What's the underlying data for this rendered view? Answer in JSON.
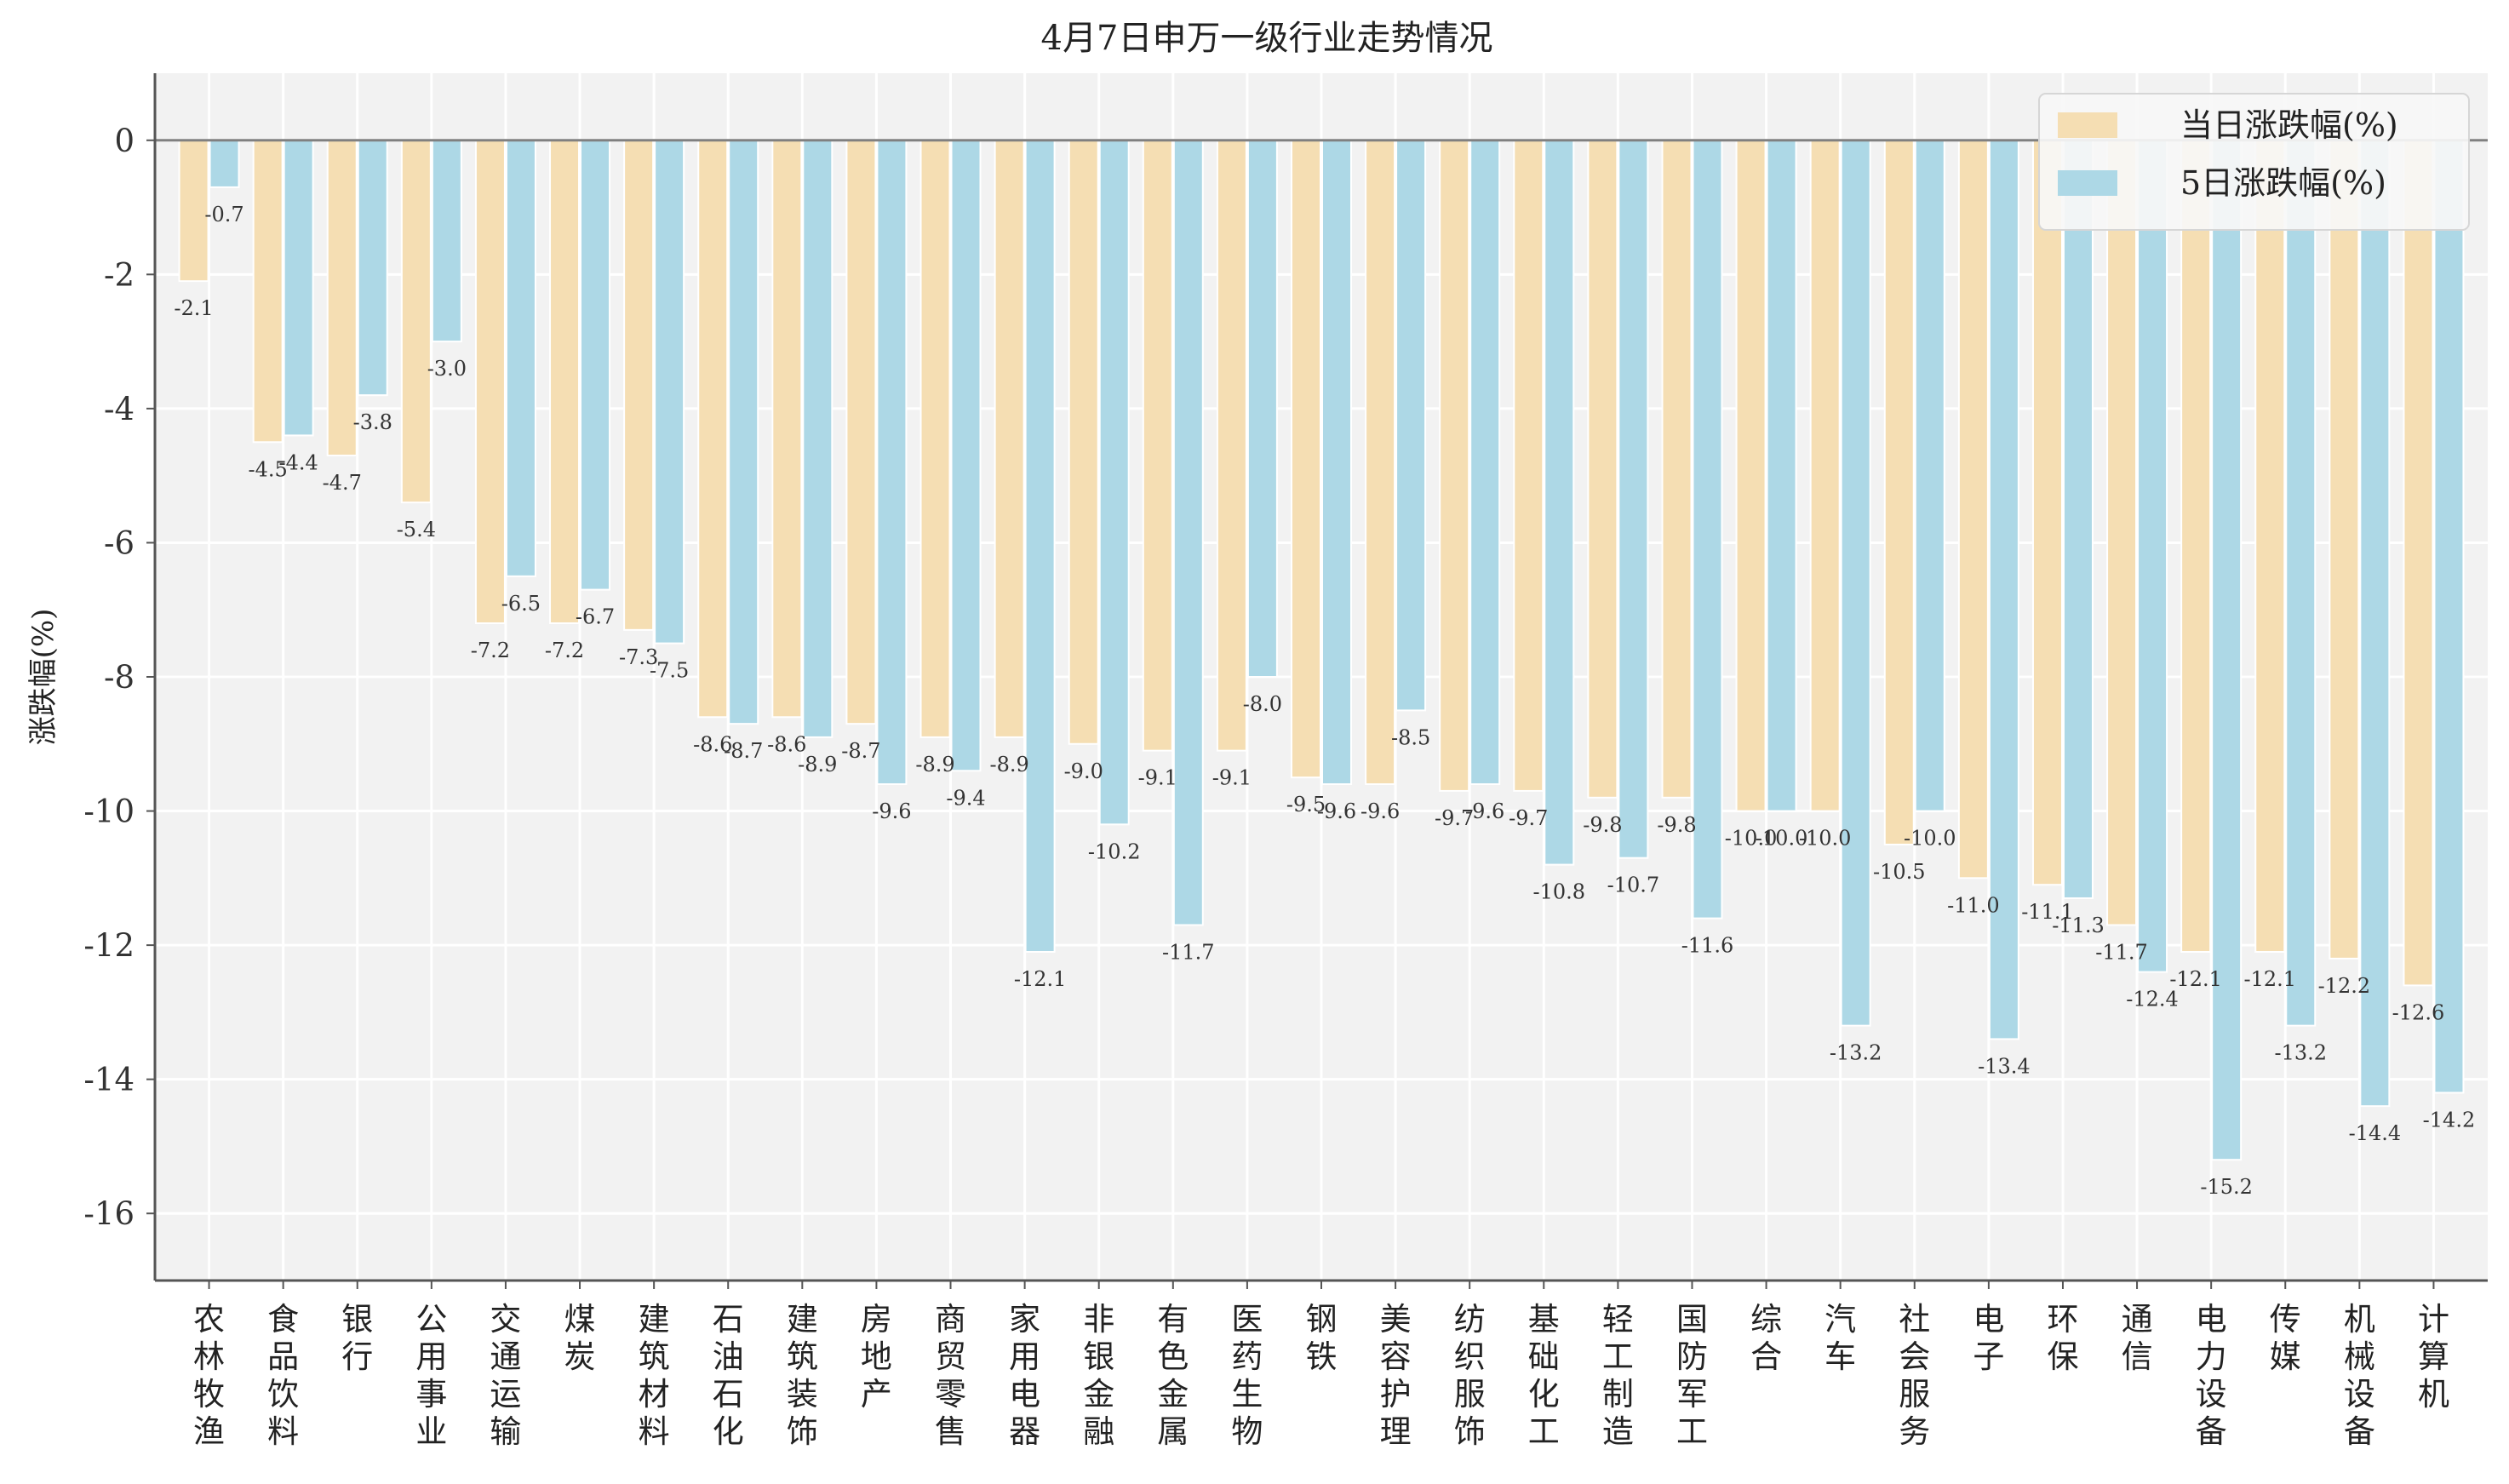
{
  "chart_data": {
    "type": "bar",
    "title": "4月7日申万一级行业走势情况",
    "ylabel": "涨跌幅(%)",
    "xlabel": "",
    "ylim": [
      -17,
      1
    ],
    "yticks": [
      0,
      -2,
      -4,
      -6,
      -8,
      -10,
      -12,
      -14,
      -16
    ],
    "grid": true,
    "legend_position": "top-right",
    "categories": [
      "农林牧渔",
      "食品饮料",
      "银行",
      "公用事业",
      "交通运输",
      "煤炭",
      "建筑材料",
      "石油石化",
      "建筑装饰",
      "房地产",
      "商贸零售",
      "家用电器",
      "非银金融",
      "有色金属",
      "医药生物",
      "钢铁",
      "美容护理",
      "纺织服饰",
      "基础化工",
      "轻工制造",
      "国防军工",
      "综合",
      "汽车",
      "社会服务",
      "电子",
      "环保",
      "通信",
      "电力设备",
      "传媒",
      "机械设备",
      "计算机"
    ],
    "series": [
      {
        "name": "当日涨跌幅(%)",
        "color": "#f5deb3",
        "values": [
          -2.1,
          -4.5,
          -4.7,
          -5.4,
          -7.2,
          -7.2,
          -7.3,
          -8.6,
          -8.6,
          -8.7,
          -8.9,
          -8.9,
          -9.0,
          -9.1,
          -9.1,
          -9.5,
          -9.6,
          -9.7,
          -9.7,
          -9.8,
          -9.8,
          -10.0,
          -10.0,
          -10.5,
          -11.0,
          -11.1,
          -11.7,
          -12.1,
          -12.1,
          -12.2,
          -12.6
        ]
      },
      {
        "name": "5日涨跌幅(%)",
        "color": "#add8e6",
        "values": [
          -0.7,
          -4.4,
          -3.8,
          -3.0,
          -6.5,
          -6.7,
          -7.5,
          -8.7,
          -8.9,
          -9.6,
          -9.4,
          -12.1,
          -10.2,
          -11.7,
          -8.0,
          -9.6,
          -8.5,
          -9.6,
          -10.8,
          -10.7,
          -11.6,
          -10.0,
          -13.2,
          -10.0,
          -13.4,
          -11.3,
          -12.4,
          -15.2,
          -13.2,
          -14.4,
          -14.2
        ]
      }
    ]
  },
  "colors": {
    "plot_background": "#f2f2f2",
    "grid": "#ffffff",
    "zero_line": "#808080",
    "axis": "#555555"
  }
}
